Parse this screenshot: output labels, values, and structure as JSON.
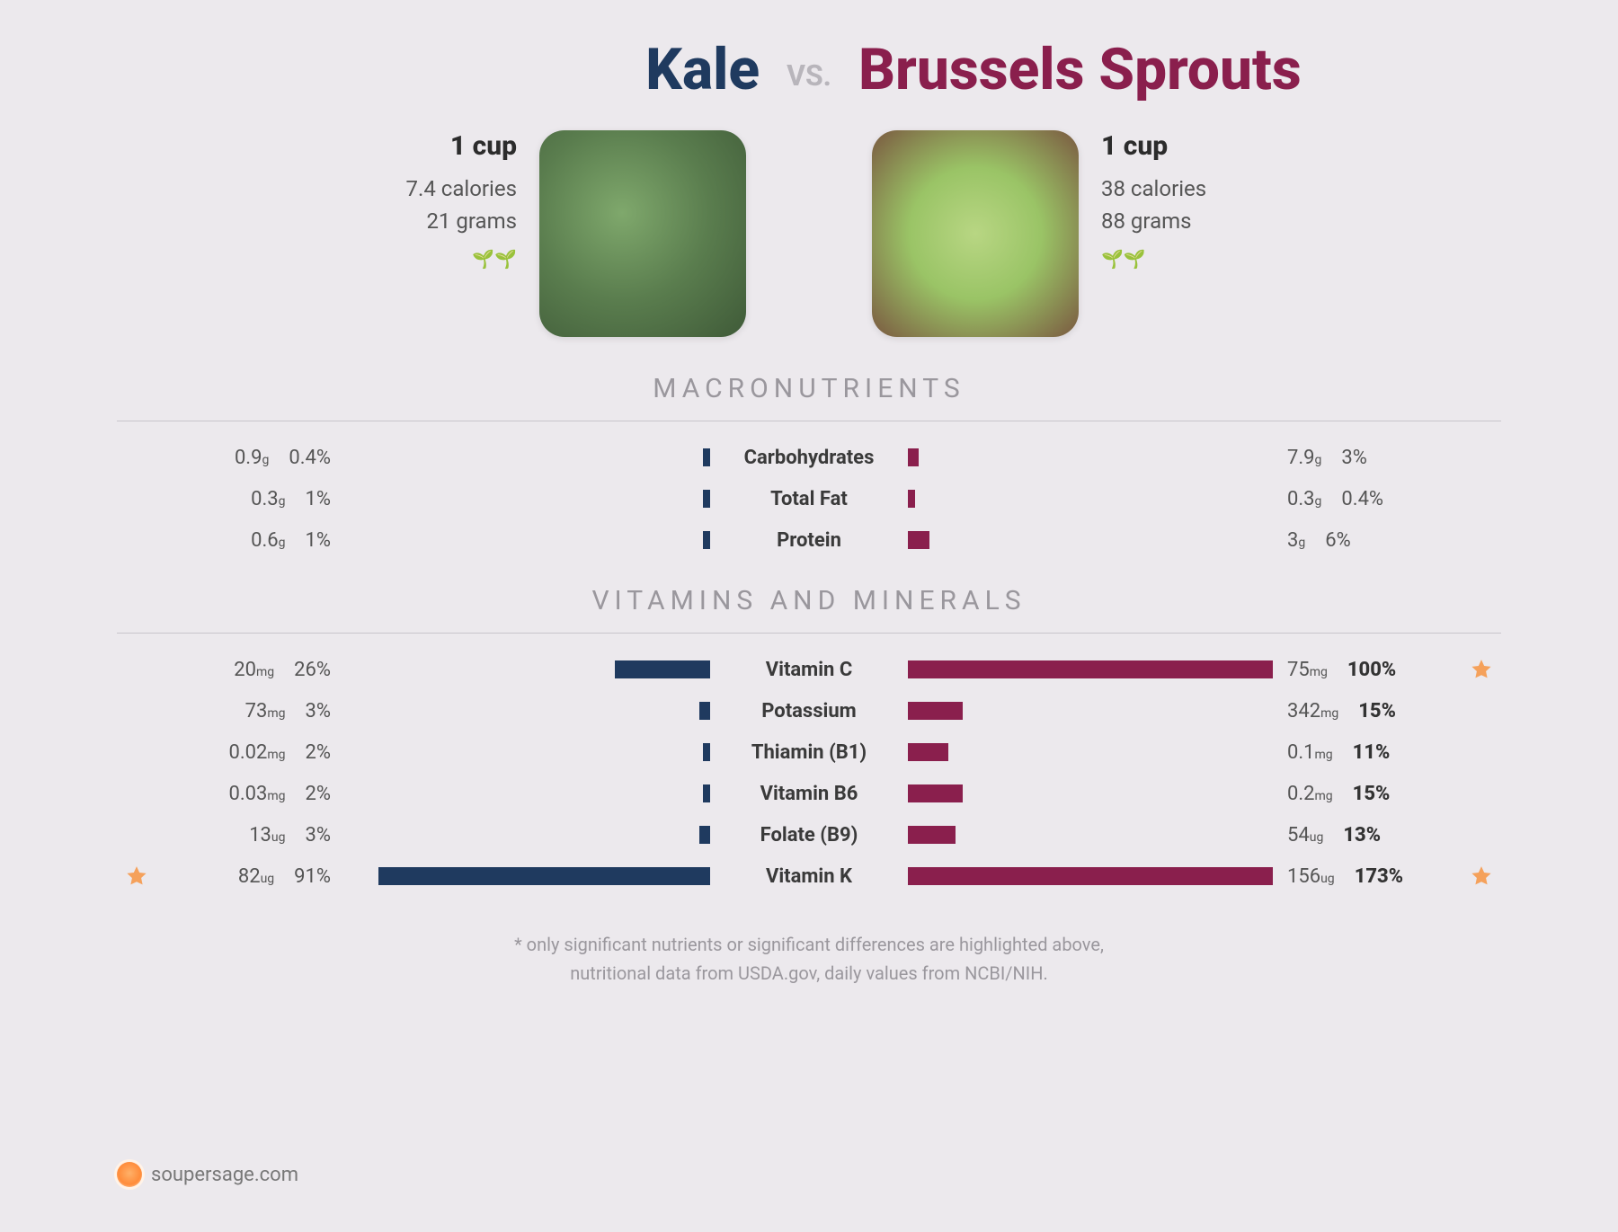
{
  "header": {
    "left_title": "Kale",
    "right_title": "Brussels Sprouts",
    "vs_label": "VS."
  },
  "colors": {
    "left": "#1f3a5f",
    "right": "#8a1f4d",
    "star": "#f5a15b",
    "section_text": "#9a979d",
    "background": "#ece9ed"
  },
  "left_food": {
    "serving": "1 cup",
    "calories": "7.4 calories",
    "grams": "21 grams",
    "seedlings": "🌱🌱"
  },
  "right_food": {
    "serving": "1 cup",
    "calories": "38 calories",
    "grams": "88 grams",
    "seedlings": "🌱🌱"
  },
  "sections": {
    "macros_title": "MACRONUTRIENTS",
    "vitamins_title": "VITAMINS AND MINERALS"
  },
  "bar_max_pct": 100,
  "macros": [
    {
      "label": "Carbohydrates",
      "left_amount": "0.9",
      "left_unit": "g",
      "left_pct": "0.4%",
      "left_bar": 0.4,
      "right_amount": "7.9",
      "right_unit": "g",
      "right_pct": "3%",
      "right_bar": 3
    },
    {
      "label": "Total Fat",
      "left_amount": "0.3",
      "left_unit": "g",
      "left_pct": "1%",
      "left_bar": 1,
      "right_amount": "0.3",
      "right_unit": "g",
      "right_pct": "0.4%",
      "right_bar": 0.4
    },
    {
      "label": "Protein",
      "left_amount": "0.6",
      "left_unit": "g",
      "left_pct": "1%",
      "left_bar": 1,
      "right_amount": "3",
      "right_unit": "g",
      "right_pct": "6%",
      "right_bar": 6
    }
  ],
  "vitamins": [
    {
      "label": "Vitamin C",
      "left_amount": "20",
      "left_unit": "mg",
      "left_pct": "26%",
      "left_bar": 26,
      "left_star": false,
      "right_amount": "75",
      "right_unit": "mg",
      "right_pct": "100%",
      "right_bar": 100,
      "right_star": true,
      "right_bold": true
    },
    {
      "label": "Potassium",
      "left_amount": "73",
      "left_unit": "mg",
      "left_pct": "3%",
      "left_bar": 3,
      "left_star": false,
      "right_amount": "342",
      "right_unit": "mg",
      "right_pct": "15%",
      "right_bar": 15,
      "right_star": false,
      "right_bold": true
    },
    {
      "label": "Thiamin (B1)",
      "left_amount": "0.02",
      "left_unit": "mg",
      "left_pct": "2%",
      "left_bar": 2,
      "left_star": false,
      "right_amount": "0.1",
      "right_unit": "mg",
      "right_pct": "11%",
      "right_bar": 11,
      "right_star": false,
      "right_bold": true
    },
    {
      "label": "Vitamin B6",
      "left_amount": "0.03",
      "left_unit": "mg",
      "left_pct": "2%",
      "left_bar": 2,
      "left_star": false,
      "right_amount": "0.2",
      "right_unit": "mg",
      "right_pct": "15%",
      "right_bar": 15,
      "right_star": false,
      "right_bold": true
    },
    {
      "label": "Folate (B9)",
      "left_amount": "13",
      "left_unit": "ug",
      "left_pct": "3%",
      "left_bar": 3,
      "left_star": false,
      "right_amount": "54",
      "right_unit": "ug",
      "right_pct": "13%",
      "right_bar": 13,
      "right_star": false,
      "right_bold": true
    },
    {
      "label": "Vitamin K",
      "left_amount": "82",
      "left_unit": "ug",
      "left_pct": "91%",
      "left_bar": 91,
      "left_star": true,
      "right_amount": "156",
      "right_unit": "ug",
      "right_pct": "173%",
      "right_bar": 100,
      "right_star": true,
      "right_bold": true
    }
  ],
  "footnote": {
    "line1": "* only significant nutrients or significant differences are highlighted above,",
    "line2": "nutritional data from USDA.gov, daily values from NCBI/NIH."
  },
  "brand": "soupersage.com"
}
